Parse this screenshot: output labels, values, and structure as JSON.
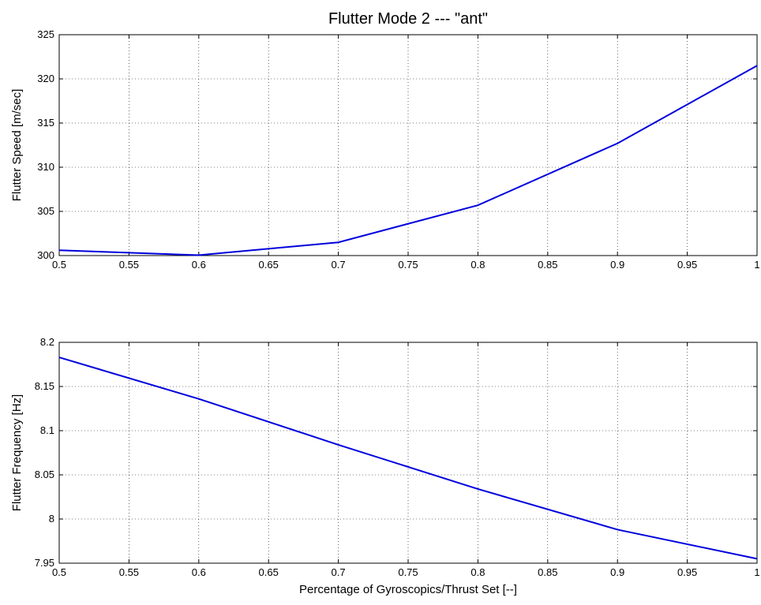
{
  "chart_data": [
    {
      "type": "line",
      "title": "Flutter Mode 2 --- \"ant\"",
      "xlabel": "",
      "ylabel": "Flutter Speed [m/sec]",
      "xlim": [
        0.5,
        1
      ],
      "ylim": [
        300,
        325
      ],
      "xticks": [
        0.5,
        0.55,
        0.6,
        0.65,
        0.7,
        0.75,
        0.8,
        0.85,
        0.9,
        0.95,
        1
      ],
      "xtick_labels": [
        "0.5",
        "0.55",
        "0.6",
        "0.65",
        "0.7",
        "0.75",
        "0.8",
        "0.85",
        "0.9",
        "0.95",
        "1"
      ],
      "yticks": [
        300,
        305,
        310,
        315,
        320,
        325
      ],
      "ytick_labels": [
        "300",
        "305",
        "310",
        "315",
        "320",
        "325"
      ],
      "grid": true,
      "color": "#0000dd",
      "series": [
        {
          "x": [
            0.5,
            0.6,
            0.7,
            0.8,
            0.9,
            1.0
          ],
          "y": [
            300.6,
            300.05,
            301.5,
            305.7,
            312.7,
            321.5
          ]
        }
      ]
    },
    {
      "type": "line",
      "title": "",
      "xlabel": "Percentage of Gyroscopics/Thrust Set [--]",
      "ylabel": "Flutter Frequency [Hz]",
      "xlim": [
        0.5,
        1
      ],
      "ylim": [
        7.95,
        8.2
      ],
      "xticks": [
        0.5,
        0.55,
        0.6,
        0.65,
        0.7,
        0.75,
        0.8,
        0.85,
        0.9,
        0.95,
        1
      ],
      "xtick_labels": [
        "0.5",
        "0.55",
        "0.6",
        "0.65",
        "0.7",
        "0.75",
        "0.8",
        "0.85",
        "0.9",
        "0.95",
        "1"
      ],
      "yticks": [
        7.95,
        8.0,
        8.05,
        8.1,
        8.15,
        8.2
      ],
      "ytick_labels": [
        "7.95",
        "8",
        "8.05",
        "8.1",
        "8.15",
        "8.2"
      ],
      "grid": true,
      "color": "#0000dd",
      "series": [
        {
          "x": [
            0.5,
            0.6,
            0.7,
            0.8,
            0.9,
            1.0
          ],
          "y": [
            8.183,
            8.136,
            8.084,
            8.034,
            7.988,
            7.955
          ]
        }
      ]
    }
  ]
}
